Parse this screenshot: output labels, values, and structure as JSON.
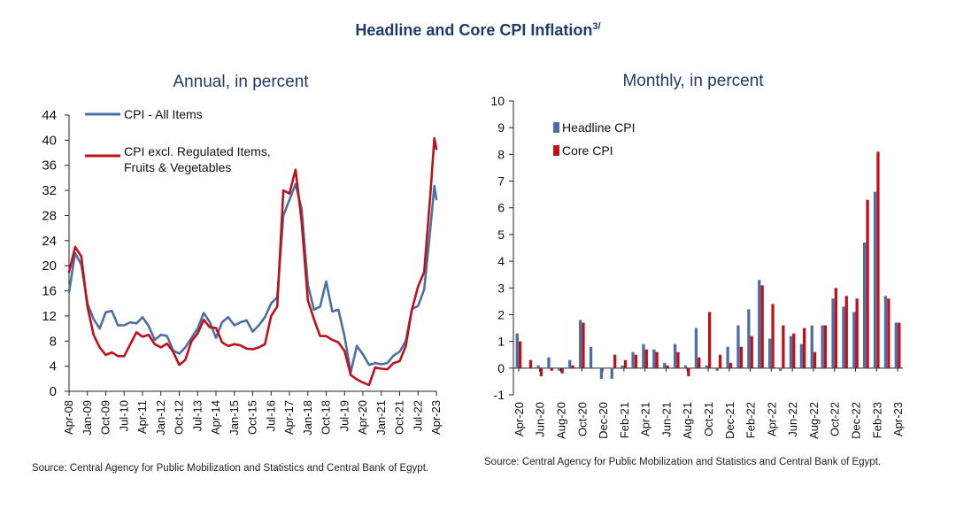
{
  "title": "Headline and Core CPI Inflation",
  "title_sup": "3/",
  "colors": {
    "headline": "#4a6fa5",
    "core": "#c0101a",
    "title": "#1f3a6b"
  },
  "chart_data": [
    {
      "type": "line",
      "title": "Annual, in percent",
      "ylim": [
        0,
        44
      ],
      "yticks": [
        0,
        4,
        8,
        12,
        16,
        20,
        24,
        28,
        32,
        36,
        40,
        44
      ],
      "x_start": "Apr-08",
      "x_end": "Apr-23",
      "xticks": [
        "Apr-08",
        "Jan-09",
        "Oct-09",
        "Jul-10",
        "Apr-11",
        "Jan-12",
        "Oct-12",
        "Jul-13",
        "Apr-14",
        "Jan-15",
        "Oct-15",
        "Jul-16",
        "Apr-17",
        "Jan-18",
        "Oct-18",
        "Jul-19",
        "Apr-20",
        "Jan-21",
        "Oct-21",
        "Jul-22",
        "Apr-23"
      ],
      "legend_position": "top-left",
      "series": [
        {
          "name": "CPI - All Items",
          "color": "#4a6fa5",
          "points": [
            [
              "Apr-08",
              15.8
            ],
            [
              "Jul-08",
              22.0
            ],
            [
              "Oct-08",
              20.2
            ],
            [
              "Jan-09",
              14.0
            ],
            [
              "Apr-09",
              11.5
            ],
            [
              "Jul-09",
              10.0
            ],
            [
              "Oct-09",
              12.6
            ],
            [
              "Jan-10",
              12.8
            ],
            [
              "Apr-10",
              10.5
            ],
            [
              "Jul-10",
              10.5
            ],
            [
              "Oct-10",
              11.0
            ],
            [
              "Jan-11",
              10.8
            ],
            [
              "Apr-11",
              11.8
            ],
            [
              "Jul-11",
              10.4
            ],
            [
              "Oct-11",
              8.2
            ],
            [
              "Jan-12",
              9.0
            ],
            [
              "Apr-12",
              8.8
            ],
            [
              "Jul-12",
              6.5
            ],
            [
              "Oct-12",
              6.0
            ],
            [
              "Jan-13",
              7.0
            ],
            [
              "Apr-13",
              8.5
            ],
            [
              "Jul-13",
              10.0
            ],
            [
              "Oct-13",
              12.5
            ],
            [
              "Jan-14",
              11.0
            ],
            [
              "Apr-14",
              8.5
            ],
            [
              "Jul-14",
              11.0
            ],
            [
              "Oct-14",
              11.8
            ],
            [
              "Jan-15",
              10.5
            ],
            [
              "Apr-15",
              11.0
            ],
            [
              "Jul-15",
              11.3
            ],
            [
              "Oct-15",
              9.5
            ],
            [
              "Jan-16",
              10.5
            ],
            [
              "Apr-16",
              11.8
            ],
            [
              "Jul-16",
              14.0
            ],
            [
              "Oct-16",
              15.0
            ],
            [
              "Jan-17",
              28.0
            ],
            [
              "Apr-17",
              30.5
            ],
            [
              "Jul-17",
              33.0
            ],
            [
              "Oct-17",
              29.0
            ],
            [
              "Jan-18",
              17.0
            ],
            [
              "Apr-18",
              13.0
            ],
            [
              "Jul-18",
              13.5
            ],
            [
              "Oct-18",
              17.5
            ],
            [
              "Jan-19",
              12.7
            ],
            [
              "Apr-19",
              13.0
            ],
            [
              "Jul-19",
              8.7
            ],
            [
              "Oct-19",
              3.0
            ],
            [
              "Jan-20",
              7.2
            ],
            [
              "Apr-20",
              5.9
            ],
            [
              "Jul-20",
              4.2
            ],
            [
              "Oct-20",
              4.5
            ],
            [
              "Jan-21",
              4.3
            ],
            [
              "Apr-21",
              4.5
            ],
            [
              "Jul-21",
              5.7
            ],
            [
              "Oct-21",
              6.3
            ],
            [
              "Jan-22",
              8.0
            ],
            [
              "Apr-22",
              13.1
            ],
            [
              "Jul-22",
              13.6
            ],
            [
              "Oct-22",
              16.2
            ],
            [
              "Jan-23",
              25.8
            ],
            [
              "Mar-23",
              32.7
            ],
            [
              "Apr-23",
              30.6
            ]
          ]
        },
        {
          "name": "CPI excl. Regulated Items, Fruits & Vegetables",
          "color": "#c0101a",
          "points": [
            [
              "Apr-08",
              19.0
            ],
            [
              "Jul-08",
              23.0
            ],
            [
              "Oct-08",
              21.5
            ],
            [
              "Jan-09",
              13.5
            ],
            [
              "Apr-09",
              9.0
            ],
            [
              "Jul-09",
              7.0
            ],
            [
              "Oct-09",
              5.8
            ],
            [
              "Jan-10",
              6.2
            ],
            [
              "Apr-10",
              5.6
            ],
            [
              "Jul-10",
              5.6
            ],
            [
              "Oct-10",
              7.5
            ],
            [
              "Jan-11",
              9.4
            ],
            [
              "Apr-11",
              8.7
            ],
            [
              "Jul-11",
              9.0
            ],
            [
              "Oct-11",
              7.5
            ],
            [
              "Jan-12",
              7.0
            ],
            [
              "Apr-12",
              7.6
            ],
            [
              "Jul-12",
              6.3
            ],
            [
              "Oct-12",
              4.2
            ],
            [
              "Jan-13",
              5.0
            ],
            [
              "Apr-13",
              8.0
            ],
            [
              "Jul-13",
              9.2
            ],
            [
              "Oct-13",
              11.4
            ],
            [
              "Jan-14",
              10.2
            ],
            [
              "Apr-14",
              10.1
            ],
            [
              "Jul-14",
              7.8
            ],
            [
              "Oct-14",
              7.2
            ],
            [
              "Jan-15",
              7.5
            ],
            [
              "Apr-15",
              7.3
            ],
            [
              "Jul-15",
              6.8
            ],
            [
              "Oct-15",
              6.7
            ],
            [
              "Jan-16",
              7.0
            ],
            [
              "Apr-16",
              7.5
            ],
            [
              "Jul-16",
              12.0
            ],
            [
              "Oct-16",
              13.5
            ],
            [
              "Jan-17",
              32.0
            ],
            [
              "Apr-17",
              31.5
            ],
            [
              "Jul-17",
              35.3
            ],
            [
              "Oct-17",
              27.0
            ],
            [
              "Jan-18",
              14.5
            ],
            [
              "Apr-18",
              11.5
            ],
            [
              "Jul-18",
              8.8
            ],
            [
              "Oct-18",
              8.8
            ],
            [
              "Jan-19",
              8.2
            ],
            [
              "Apr-19",
              7.8
            ],
            [
              "Jul-19",
              6.4
            ],
            [
              "Oct-19",
              2.6
            ],
            [
              "Jan-20",
              1.9
            ],
            [
              "Apr-20",
              1.4
            ],
            [
              "Jul-20",
              1.0
            ],
            [
              "Oct-20",
              3.8
            ],
            [
              "Jan-21",
              3.6
            ],
            [
              "Apr-21",
              3.5
            ],
            [
              "Jul-21",
              4.5
            ],
            [
              "Oct-21",
              4.8
            ],
            [
              "Jan-22",
              7.2
            ],
            [
              "Apr-22",
              13.0
            ],
            [
              "Jul-22",
              16.7
            ],
            [
              "Oct-22",
              19.0
            ],
            [
              "Jan-23",
              31.2
            ],
            [
              "Mar-23",
              40.3
            ],
            [
              "Apr-23",
              38.6
            ]
          ]
        }
      ]
    },
    {
      "type": "bar",
      "title": "Monthly, in percent",
      "ylim": [
        -1,
        10
      ],
      "yticks": [
        -1,
        0,
        1,
        2,
        3,
        4,
        5,
        6,
        7,
        8,
        9,
        10
      ],
      "categories": [
        "Apr-20",
        "May-20",
        "Jun-20",
        "Jul-20",
        "Aug-20",
        "Sep-20",
        "Oct-20",
        "Nov-20",
        "Dec-20",
        "Jan-21",
        "Feb-21",
        "Mar-21",
        "Apr-21",
        "May-21",
        "Jun-21",
        "Jul-21",
        "Aug-21",
        "Sep-21",
        "Oct-21",
        "Nov-21",
        "Dec-21",
        "Jan-22",
        "Feb-22",
        "Mar-22",
        "Apr-22",
        "May-22",
        "Jun-22",
        "Jul-22",
        "Aug-22",
        "Sep-22",
        "Oct-22",
        "Nov-22",
        "Dec-22",
        "Jan-23",
        "Feb-23",
        "Mar-23",
        "Apr-23"
      ],
      "xticks": [
        "Apr-20",
        "Jun-20",
        "Aug-20",
        "Oct-20",
        "Dec-20",
        "Feb-21",
        "Apr-21",
        "Jun-21",
        "Aug-21",
        "Oct-21",
        "Dec-21",
        "Feb-22",
        "Apr-22",
        "Jun-22",
        "Aug-22",
        "Oct-22",
        "Dec-22",
        "Feb-23",
        "Apr-23"
      ],
      "legend_position": "top-left",
      "series": [
        {
          "name": "Headline CPI",
          "color": "#4a6fa5",
          "values": [
            1.3,
            0.0,
            0.1,
            0.4,
            -0.1,
            0.3,
            1.8,
            0.8,
            -0.4,
            -0.4,
            0.1,
            0.6,
            0.9,
            0.7,
            0.2,
            0.9,
            0.1,
            1.5,
            0.1,
            -0.1,
            0.8,
            1.6,
            2.2,
            3.3,
            1.1,
            -0.1,
            1.2,
            0.9,
            1.6,
            1.6,
            2.6,
            2.3,
            2.1,
            4.7,
            6.6,
            2.7,
            1.7
          ]
        },
        {
          "name": "Core CPI",
          "color": "#c0101a",
          "values": [
            1.0,
            0.3,
            -0.3,
            -0.1,
            -0.2,
            0.1,
            1.7,
            0.0,
            0.0,
            0.5,
            0.3,
            0.5,
            0.7,
            0.6,
            0.1,
            0.6,
            -0.3,
            0.4,
            2.1,
            0.5,
            0.2,
            0.8,
            1.2,
            3.1,
            2.4,
            1.6,
            1.3,
            1.5,
            0.6,
            1.6,
            3.0,
            2.7,
            2.6,
            6.3,
            8.1,
            2.6,
            1.7
          ]
        }
      ]
    }
  ],
  "source_left": "Source: Central Agency for Public Mobilization and Statistics and Central Bank of Egypt.",
  "source_right": "Source: Central Agency for Public Mobilization and Statistics and Central Bank of Egypt."
}
